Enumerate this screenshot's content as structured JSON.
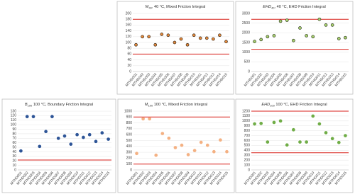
{
  "chart_data": [
    {
      "type": "scatter",
      "title": {
        "symbol": "M",
        "subscript": "40",
        "text": ", 40 °C, Mixed Friction Integral"
      },
      "italic_symbol": false,
      "categories": [
        "MTHD001",
        "MTHD002",
        "MTHD003",
        "MTHD004",
        "MTHD005",
        "MTHD006",
        "MTHD007",
        "MTHD008",
        "MTHD009",
        "MTHD010",
        "MTHD011",
        "MTHD012",
        "MTHD013",
        "MTHD014",
        "MTHD015"
      ],
      "values": [
        92,
        120,
        120,
        92,
        128,
        125,
        100,
        112,
        92,
        125,
        115,
        115,
        112,
        125,
        103
      ],
      "color": "#e58a3c",
      "marker_edge": "#3a2a1a",
      "ylim": [
        0,
        200
      ],
      "yticks": [
        0,
        20,
        40,
        60,
        80,
        100,
        120,
        140,
        160,
        180,
        200
      ],
      "limit_lines": [
        180,
        60
      ],
      "limit_color": "#d9221c",
      "grid": true
    },
    {
      "type": "scatter",
      "title": {
        "symbol": "EHD",
        "subscript": "40",
        "text": ", 40 °C, EHD Friction Integral"
      },
      "italic_symbol": true,
      "categories": [
        "MTHD001",
        "MTHD002",
        "MTHD003",
        "MTHD004",
        "MTHD005",
        "MTHD006",
        "MTHD007",
        "MTHD008",
        "MTHD009",
        "MTHD010",
        "MTHD011",
        "MTHD012",
        "MTHD013",
        "MTHD014",
        "MTHD015"
      ],
      "values": [
        1550,
        1650,
        1800,
        1850,
        2600,
        2650,
        1600,
        2250,
        1850,
        1800,
        2700,
        2400,
        2400,
        1700,
        1750
      ],
      "color": "#a9d16e",
      "marker_edge": "#2f3a20",
      "ylim": [
        0,
        3000
      ],
      "yticks": [
        0,
        500,
        1000,
        1500,
        2000,
        2500,
        3000
      ],
      "limit_lines": [
        2700,
        1150
      ],
      "limit_color": "#d9221c",
      "grid": true
    },
    {
      "type": "scatter",
      "title": {
        "symbol": "B",
        "subscript": "100",
        "text": " 100 °C, Boundary Friction Integral"
      },
      "italic_symbol": true,
      "categories": [
        "MTHD001",
        "MTHD002",
        "MTHD003",
        "MTHD004",
        "MTHD005",
        "MTHD006",
        "MTHD007",
        "MTHD008",
        "MTHD009",
        "MTHD010",
        "MTHD011",
        "MTHD012",
        "MTHD013",
        "MTHD014",
        "MTHD015"
      ],
      "values": [
        42,
        118,
        118,
        52,
        85,
        118,
        70,
        75,
        57,
        78,
        72,
        78,
        63,
        82,
        68
      ],
      "color": "#2e5597",
      "marker_edge": "#2e5597",
      "ylim": [
        0,
        130
      ],
      "yticks": [
        0,
        10,
        20,
        30,
        40,
        50,
        60,
        70,
        80,
        90,
        100,
        110,
        120,
        130
      ],
      "limit_lines": [
        22
      ],
      "limit_color": "#d9221c",
      "grid": true
    },
    {
      "type": "scatter",
      "title": {
        "symbol": "M",
        "subscript": "100",
        "text": " 100 °C, Mixed Friction Integral"
      },
      "italic_symbol": false,
      "categories": [
        "MTHD001",
        "MTHD002",
        "MTHD003",
        "MTHD004",
        "MTHD005",
        "MTHD006",
        "MTHD007",
        "MTHD008",
        "MTHD009",
        "MTHD010",
        "MTHD011",
        "MTHD012",
        "MTHD013",
        "MTHD014",
        "MTHD015"
      ],
      "values": [
        280,
        870,
        870,
        250,
        620,
        540,
        380,
        420,
        260,
        330,
        470,
        420,
        310,
        510,
        310
      ],
      "color": "#f4b183",
      "marker_edge": "#f4b183",
      "ylim": [
        0,
        1000
      ],
      "yticks": [
        0,
        100,
        200,
        300,
        400,
        500,
        600,
        700,
        800,
        900,
        1000
      ],
      "limit_lines": [
        900,
        100
      ],
      "limit_color": "#d9221c",
      "grid": true
    },
    {
      "type": "scatter",
      "title": {
        "symbol": "EHD",
        "subscript": "100",
        "text": " 100 °C, EHD Friction Integral"
      },
      "italic_symbol": true,
      "categories": [
        "MTHD001",
        "MTHD002",
        "MTHD003",
        "MTHD004",
        "MTHD005",
        "MTHD006",
        "MTHD007",
        "MTHD008",
        "MTHD009",
        "MTHD010",
        "MTHD011",
        "MTHD012",
        "MTHD013",
        "MTHD014",
        "MTHD015"
      ],
      "values": [
        940,
        950,
        570,
        970,
        1000,
        510,
        820,
        570,
        570,
        1100,
        940,
        760,
        640,
        560,
        700
      ],
      "color": "#70ad47",
      "marker_edge": "#70ad47",
      "ylim": [
        0,
        1200
      ],
      "yticks": [
        0,
        100,
        200,
        300,
        400,
        500,
        600,
        700,
        800,
        900,
        1000,
        1100,
        1200
      ],
      "limit_lines": [
        1200,
        350
      ],
      "limit_color": "#d9221c",
      "grid": true
    }
  ]
}
